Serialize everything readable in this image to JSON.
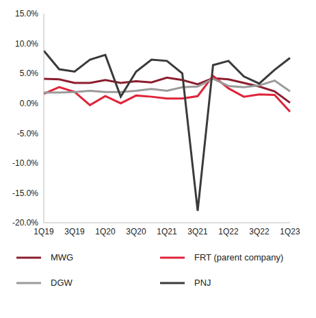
{
  "chart_data": {
    "type": "line",
    "categories": [
      "1Q19",
      null,
      "3Q19",
      null,
      "1Q20",
      null,
      "3Q20",
      null,
      "1Q21",
      null,
      "3Q21",
      null,
      "1Q22",
      null,
      "3Q22",
      null,
      "1Q23"
    ],
    "series": [
      {
        "name": "MWG",
        "color": "#8c1d2e",
        "values": [
          4.1,
          4.0,
          3.4,
          3.4,
          3.9,
          3.4,
          3.7,
          3.5,
          4.3,
          3.9,
          3.2,
          4.2,
          4.0,
          3.4,
          2.8,
          2.0,
          0.1
        ]
      },
      {
        "name": "FRT (parent company)",
        "color": "#e0243a",
        "values": [
          1.6,
          2.7,
          1.9,
          -0.3,
          1.2,
          0.0,
          1.3,
          1.1,
          0.8,
          0.8,
          1.2,
          4.6,
          2.5,
          1.1,
          1.5,
          1.4,
          -1.4
        ]
      },
      {
        "name": "DGW",
        "color": "#9a9a9a",
        "values": [
          1.8,
          1.8,
          1.9,
          2.1,
          1.9,
          1.9,
          2.1,
          2.4,
          2.1,
          2.7,
          2.8,
          4.1,
          2.9,
          2.7,
          3.0,
          3.8,
          2.0
        ]
      },
      {
        "name": "PNJ",
        "color": "#3a3a3a",
        "values": [
          8.8,
          5.7,
          5.3,
          7.3,
          8.1,
          1.1,
          5.3,
          7.3,
          7.1,
          5.0,
          -18.0,
          6.4,
          7.1,
          4.5,
          3.3,
          5.6,
          7.6
        ]
      }
    ],
    "ylim": [
      -20,
      15
    ],
    "yticks": [
      {
        "value": -20,
        "label": "-20.0%"
      },
      {
        "value": -15,
        "label": "-15.0%"
      },
      {
        "value": -10,
        "label": "-10.0%"
      },
      {
        "value": -5,
        "label": "-5.0%"
      },
      {
        "value": 0,
        "label": "0.0%"
      },
      {
        "value": 5,
        "label": "5.0%"
      },
      {
        "value": 10,
        "label": "10.0%"
      },
      {
        "value": 15,
        "label": "15.0%"
      }
    ],
    "grid": false,
    "legend": "bottom"
  }
}
